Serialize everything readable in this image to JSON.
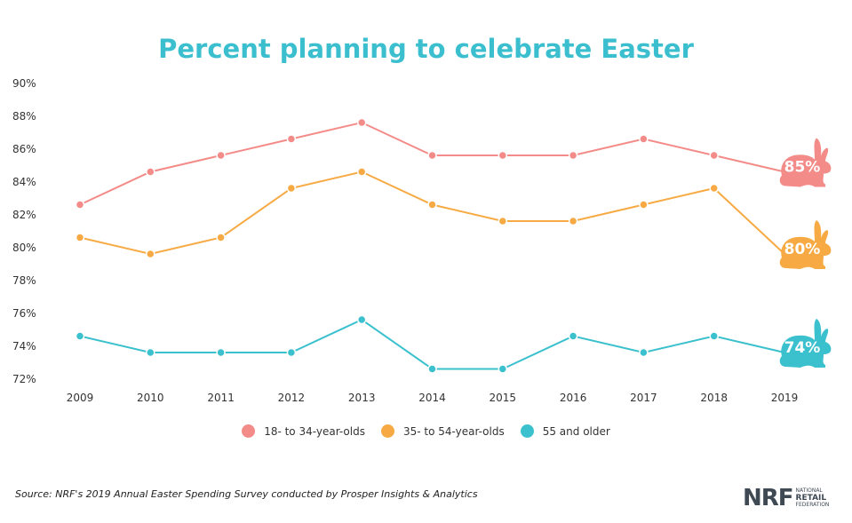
{
  "chart_data": {
    "type": "line",
    "title": "Percent planning to celebrate Easter",
    "xlabel": "",
    "ylabel": "",
    "categories": [
      "2009",
      "2010",
      "2011",
      "2012",
      "2013",
      "2014",
      "2015",
      "2016",
      "2017",
      "2018",
      "2019"
    ],
    "ylim": [
      72,
      90
    ],
    "yticks": [
      "90%",
      "88%",
      "86%",
      "84%",
      "82%",
      "80%",
      "78%",
      "76%",
      "74%",
      "72%"
    ],
    "ytick_values": [
      90,
      88,
      86,
      84,
      82,
      80,
      78,
      76,
      74,
      72
    ],
    "grid": false,
    "legend_position": "bottom-center",
    "series": [
      {
        "name": "18- to 34-year-olds",
        "color": "#f38b88",
        "values": [
          83,
          85,
          86,
          87,
          88,
          86,
          86,
          86,
          87,
          86,
          85
        ],
        "end_label": "85%"
      },
      {
        "name": "35- to 54-year-olds",
        "color": "#f7aa43",
        "values": [
          81,
          80,
          81,
          84,
          85,
          83,
          82,
          82,
          83,
          84,
          80
        ],
        "end_label": "80%"
      },
      {
        "name": "55 and older",
        "color": "#3bc0ce",
        "values": [
          75,
          74,
          74,
          74,
          76,
          73,
          73,
          75,
          74,
          75,
          74
        ],
        "end_label": "74%"
      }
    ]
  },
  "source": "Source: NRF's 2019 Annual Easter Spending Survey conducted by Prosper Insights & Analytics",
  "logo": {
    "big": "NRF",
    "line1": "NATIONAL",
    "line2": "RETAIL",
    "line3": "FEDERATION"
  }
}
